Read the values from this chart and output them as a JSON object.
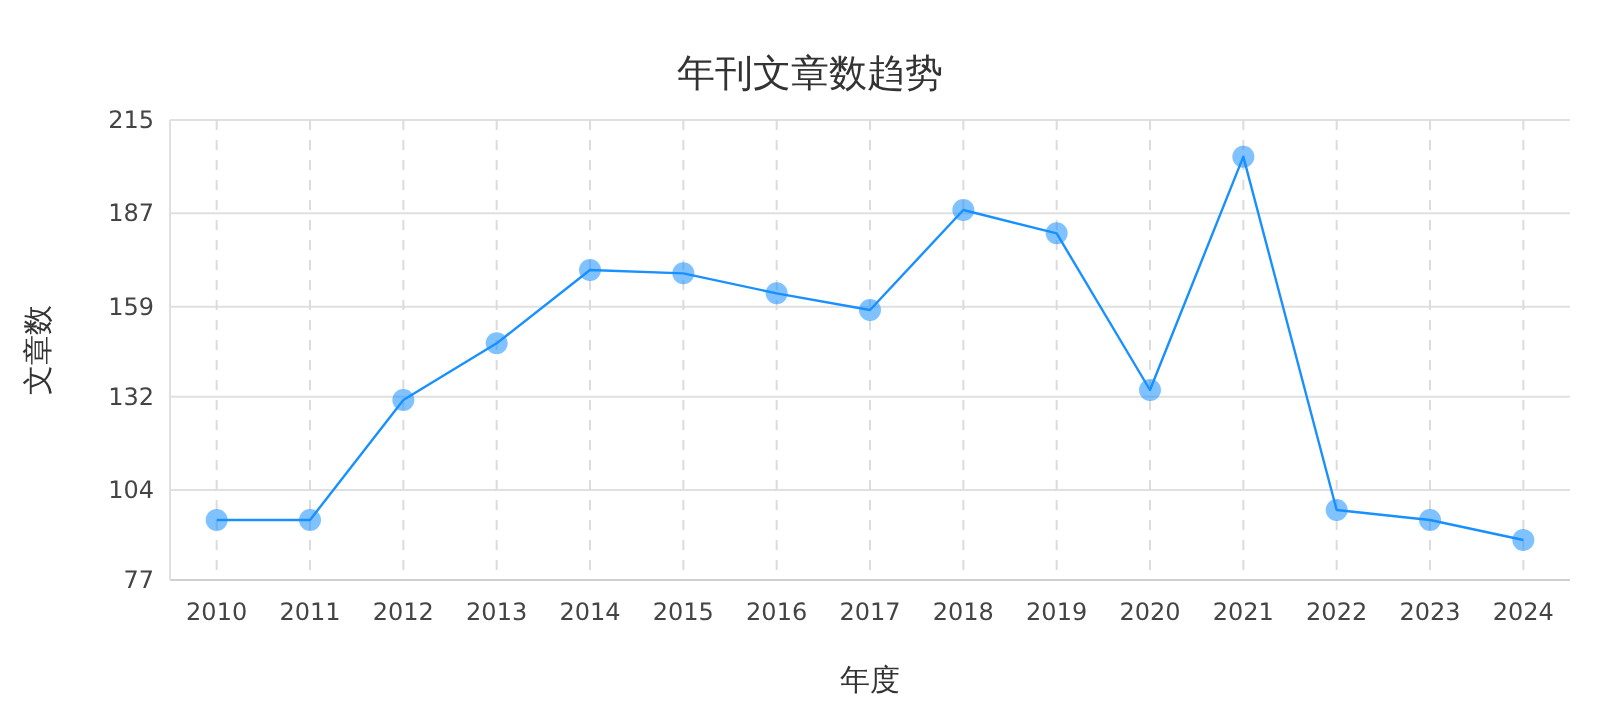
{
  "chart_data": {
    "type": "line",
    "title": "年刊文章数趋势",
    "xlabel": "年度",
    "ylabel": "文章数",
    "categories": [
      "2010",
      "2011",
      "2012",
      "2013",
      "2014",
      "2015",
      "2016",
      "2017",
      "2018",
      "2019",
      "2020",
      "2021",
      "2022",
      "2023",
      "2024"
    ],
    "series": [
      {
        "color": "#1890ff",
        "values": [
          95,
          95,
          131,
          148,
          170,
          169,
          163,
          158,
          188,
          181,
          134,
          204,
          98,
          95,
          89
        ]
      }
    ],
    "ylim": [
      77,
      215
    ],
    "yticks": [
      77,
      104,
      132,
      159,
      187,
      215
    ],
    "grid": true,
    "marker": "circle",
    "line_style": "solid"
  }
}
